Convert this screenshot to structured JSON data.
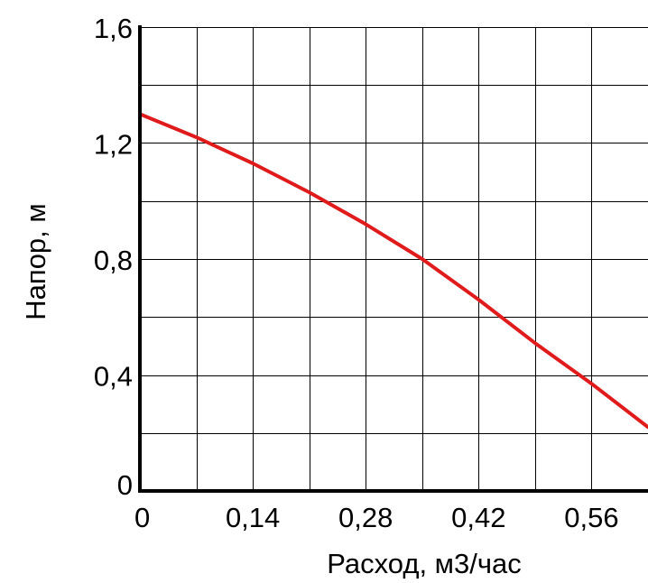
{
  "chart_data": {
    "type": "line",
    "title": "",
    "xlabel": "Расход, м3/час",
    "ylabel": "Напор, м",
    "xlim": [
      0,
      0.63
    ],
    "ylim": [
      0,
      1.6
    ],
    "grid": true,
    "x_ticks": [
      0,
      0.14,
      0.28,
      0.42,
      0.56
    ],
    "x_tick_labels": [
      "0",
      "0,14",
      "0,28",
      "0,42",
      "0,56"
    ],
    "y_ticks": [
      0,
      0.4,
      0.8,
      1.2,
      1.6
    ],
    "y_tick_labels": [
      "0",
      "0,4",
      "0,8",
      "1,2",
      "1,6"
    ],
    "series": [
      {
        "color": "#e01b1b",
        "x": [
          0,
          0.07,
          0.14,
          0.21,
          0.28,
          0.35,
          0.42,
          0.49,
          0.56,
          0.63
        ],
        "y": [
          1.3,
          1.22,
          1.13,
          1.03,
          0.92,
          0.8,
          0.66,
          0.51,
          0.37,
          0.22
        ]
      }
    ]
  }
}
